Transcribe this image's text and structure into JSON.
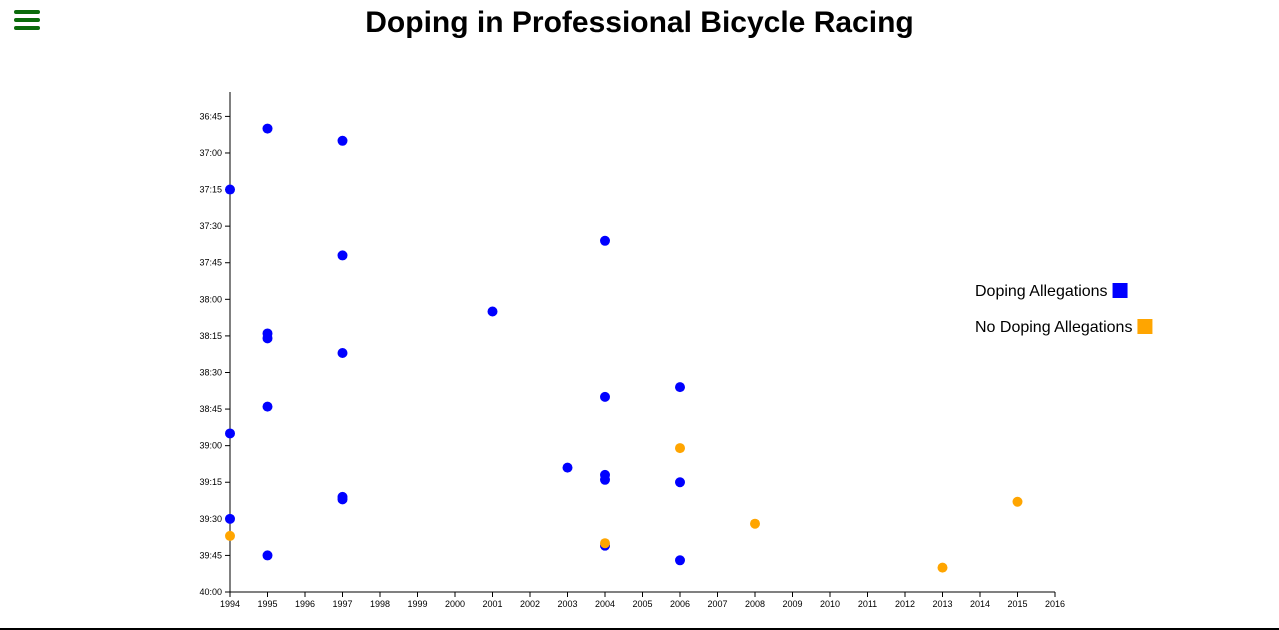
{
  "page": {
    "title": "Doping in Professional Bicycle Racing",
    "menu_icon": "hamburger-menu-icon"
  },
  "colors": {
    "doping": "#0000ff",
    "no_doping": "#ffa500",
    "menu": "#0b6b0b"
  },
  "chart_data": {
    "type": "scatter",
    "title": "Doping in Professional Bicycle Racing",
    "xlabel": "",
    "ylabel": "",
    "xlim": [
      1994,
      2016
    ],
    "ylim_seconds": [
      2195,
      2400
    ],
    "y_reversed": true,
    "x_ticks": [
      "1994",
      "1995",
      "1996",
      "1997",
      "1998",
      "1999",
      "2000",
      "2001",
      "2002",
      "2003",
      "2004",
      "2005",
      "2006",
      "2007",
      "2008",
      "2009",
      "2010",
      "2011",
      "2012",
      "2013",
      "2014",
      "2015",
      "2016"
    ],
    "y_ticks": [
      "36:45",
      "37:00",
      "37:15",
      "37:30",
      "37:45",
      "38:00",
      "38:15",
      "38:30",
      "38:45",
      "39:00",
      "39:15",
      "39:30",
      "39:45",
      "40:00"
    ],
    "legend": {
      "placement": "right",
      "entries": [
        {
          "label": "Doping Allegations",
          "series": "doping"
        },
        {
          "label": "No Doping Allegations",
          "series": "no_doping"
        }
      ]
    },
    "series": [
      {
        "key": "doping",
        "points": [
          {
            "x": 1995,
            "y": "36:50"
          },
          {
            "x": 1997,
            "y": "36:55"
          },
          {
            "x": 1994,
            "y": "37:15"
          },
          {
            "x": 2004,
            "y": "37:36"
          },
          {
            "x": 1997,
            "y": "37:42"
          },
          {
            "x": 2001,
            "y": "38:05"
          },
          {
            "x": 1995,
            "y": "38:14"
          },
          {
            "x": 1995,
            "y": "38:16"
          },
          {
            "x": 1997,
            "y": "38:22"
          },
          {
            "x": 2006,
            "y": "38:36"
          },
          {
            "x": 2004,
            "y": "38:40"
          },
          {
            "x": 1995,
            "y": "38:44"
          },
          {
            "x": 1994,
            "y": "38:55"
          },
          {
            "x": 2003,
            "y": "39:09"
          },
          {
            "x": 2004,
            "y": "39:12"
          },
          {
            "x": 2004,
            "y": "39:14"
          },
          {
            "x": 2006,
            "y": "39:15"
          },
          {
            "x": 1997,
            "y": "39:21"
          },
          {
            "x": 1997,
            "y": "39:22"
          },
          {
            "x": 1994,
            "y": "39:30"
          },
          {
            "x": 2004,
            "y": "39:41"
          },
          {
            "x": 1995,
            "y": "39:45"
          },
          {
            "x": 2006,
            "y": "39:47"
          }
        ]
      },
      {
        "key": "no_doping",
        "points": [
          {
            "x": 2006,
            "y": "39:01"
          },
          {
            "x": 2015,
            "y": "39:23"
          },
          {
            "x": 2008,
            "y": "39:32"
          },
          {
            "x": 1994,
            "y": "39:37"
          },
          {
            "x": 2004,
            "y": "39:40"
          },
          {
            "x": 2013,
            "y": "39:50"
          }
        ]
      }
    ]
  }
}
